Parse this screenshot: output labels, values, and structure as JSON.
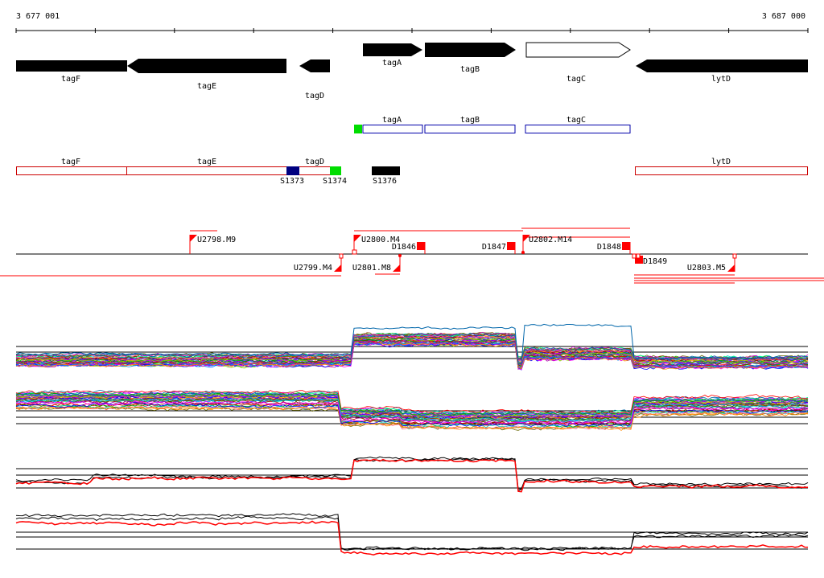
{
  "ruler": {
    "start_label": "3 677 001",
    "end_label": "3 687 000",
    "start": 3677001,
    "end": 3687000
  },
  "genes_strand_minus": [
    {
      "name": "tagF"
    },
    {
      "name": "tagE"
    },
    {
      "name": "tagD"
    },
    {
      "name": "lytD"
    }
  ],
  "genes_strand_plus": [
    {
      "name": "tagA"
    },
    {
      "name": "tagB"
    },
    {
      "name": "tagC"
    }
  ],
  "plus_track": {
    "boxes": [
      {
        "label": "tagA"
      },
      {
        "label": "tagB"
      },
      {
        "label": "tagC"
      }
    ],
    "marker_color": "#00dd00"
  },
  "minus_track": {
    "boxes": [
      {
        "label": "tagF"
      },
      {
        "label": "tagE"
      },
      {
        "label": "tagD"
      },
      {
        "label": "lytD"
      }
    ],
    "features": [
      {
        "label": "S1373",
        "color": "#000080"
      },
      {
        "label": "S1374",
        "color": "#00dd00"
      },
      {
        "label": "S1376",
        "color": "#000000"
      }
    ],
    "box_color": "#cc0000"
  },
  "transcripts": {
    "labels_above": [
      {
        "label": "U2798.M9"
      },
      {
        "label": "U2800.M4"
      },
      {
        "label": "D1846"
      },
      {
        "label": "D1847"
      },
      {
        "label": "U2802.M14"
      },
      {
        "label": "D1848"
      }
    ],
    "labels_below": [
      {
        "label": "U2799.M4"
      },
      {
        "label": "U2801.M8"
      },
      {
        "label": "D1849"
      },
      {
        "label": "U2803.M5"
      }
    ],
    "color": "#ff0000"
  },
  "colors": {
    "gene_fill": "#000000",
    "plus_box": "#0000aa",
    "track_line": "#000000",
    "red_profile": "#ff0000",
    "black_profile": "#000000"
  }
}
